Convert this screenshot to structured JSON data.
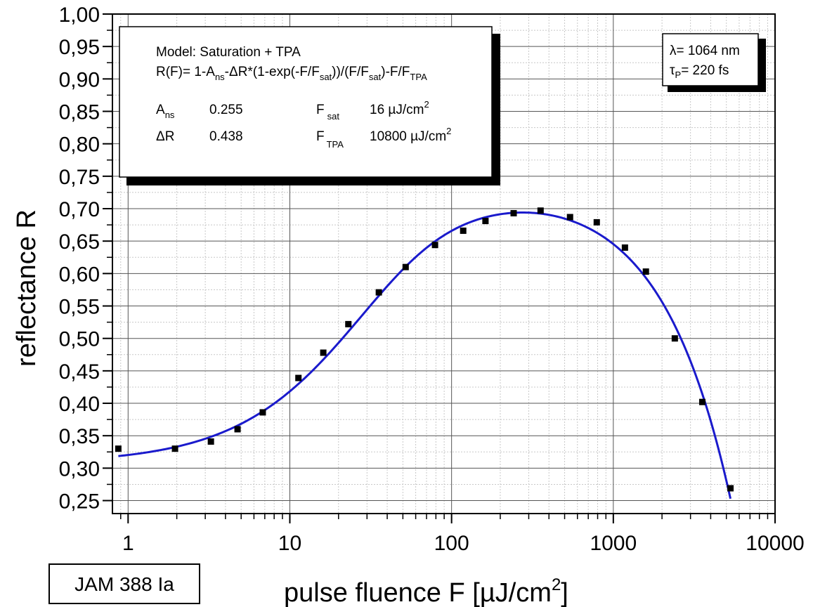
{
  "chart_data": {
    "type": "scatter",
    "title": "",
    "xlabel_main": "pulse fluence F [µJ/cm",
    "xlabel_sup": "2",
    "xlabel_end": "]",
    "ylabel": "reflectance R",
    "xscale": "log",
    "xlim": [
      0.8,
      10000
    ],
    "ylim": [
      0.23,
      1.0
    ],
    "x_ticks": [
      1,
      10,
      100,
      1000,
      10000
    ],
    "x_tick_labels": [
      "1",
      "10",
      "100",
      "1000",
      "10000"
    ],
    "y_ticks": [
      0.25,
      0.3,
      0.35,
      0.4,
      0.45,
      0.5,
      0.55,
      0.6,
      0.65,
      0.7,
      0.75,
      0.8,
      0.85,
      0.9,
      0.95,
      1.0
    ],
    "y_tick_labels": [
      "0,25",
      "0,30",
      "0,35",
      "0,40",
      "0,45",
      "0,50",
      "0,55",
      "0,60",
      "0,65",
      "0,70",
      "0,75",
      "0,80",
      "0,85",
      "0,90",
      "0,95",
      "1,00"
    ],
    "grid": true,
    "series": [
      {
        "kind": "points",
        "color": "#000000",
        "x": [
          0.87,
          1.95,
          3.25,
          4.75,
          6.8,
          11.3,
          16.1,
          23.0,
          35.5,
          52.0,
          79.0,
          118,
          162,
          242,
          355,
          540,
          790,
          1180,
          1590,
          2400,
          3550,
          5300
        ],
        "y": [
          0.33,
          0.33,
          0.341,
          0.36,
          0.386,
          0.439,
          0.478,
          0.522,
          0.571,
          0.61,
          0.644,
          0.666,
          0.681,
          0.693,
          0.697,
          0.687,
          0.679,
          0.64,
          0.603,
          0.5,
          0.402,
          0.269
        ]
      },
      {
        "kind": "fit",
        "color": "#1a1acc",
        "model": {
          "A_ns": 0.255,
          "dR": 0.438,
          "F_sat": 16,
          "F_TPA": 10800
        },
        "x_range": [
          0.87,
          5300
        ]
      }
    ]
  },
  "fit_box": {
    "line1": "Model: Saturation + TPA",
    "formula": {
      "p1": "R(F)= 1-A",
      "s1": "ns",
      "p2": "-ΔR*(1-exp(-F/F",
      "s2": "sat",
      "p3": "))/(F/F",
      "s3": "sat",
      "p4": ")-F/F",
      "s4": "TPA"
    },
    "params": {
      "a_label": "A",
      "a_sub": "ns",
      "a_value": "0.255",
      "dr_label": "ΔR",
      "dr_value": "0.438",
      "fsat_label": "F",
      "fsat_sub": "sat",
      "fsat_value": "16 µJ/cm",
      "fsat_sup": "2",
      "ftpa_label": "F",
      "ftpa_sub": "TPA",
      "ftpa_value": "10800 µJ/cm",
      "ftpa_sup": "2"
    }
  },
  "laser_box": {
    "lambda_text": "λ= 1064 nm",
    "tau_symbol": "τ",
    "tau_sub": "P",
    "tau_value": "= 220 fs"
  },
  "sample_tag": "JAM 388 Ia"
}
